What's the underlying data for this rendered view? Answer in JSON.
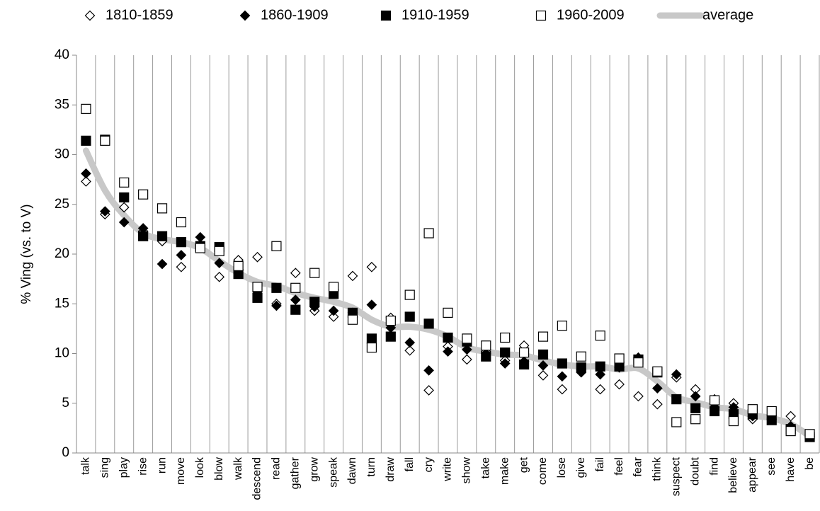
{
  "chart_data": {
    "type": "scatter",
    "ylabel": "% Ving (vs. to V)",
    "categories": [
      "talk",
      "sing",
      "play",
      "rise",
      "run",
      "move",
      "look",
      "blow",
      "walk",
      "descend",
      "read",
      "gather",
      "grow",
      "speak",
      "dawn",
      "turn",
      "draw",
      "fall",
      "cry",
      "write",
      "show",
      "take",
      "make",
      "get",
      "come",
      "lose",
      "give",
      "fail",
      "feel",
      "fear",
      "think",
      "suspect",
      "doubt",
      "find",
      "believe",
      "appear",
      "see",
      "have",
      "be"
    ],
    "ylim": [
      0,
      40
    ],
    "yticks": [
      0,
      5,
      10,
      15,
      20,
      25,
      30,
      35,
      40
    ],
    "legend": "top",
    "series": [
      {
        "name": "1810-1859",
        "color": "#000000",
        "marker": "diamond",
        "filled": false,
        "values": [
          27.3,
          24.0,
          24.7,
          22.3,
          21.3,
          18.7,
          20.9,
          17.7,
          19.4,
          19.7,
          15.0,
          18.1,
          14.3,
          13.7,
          17.8,
          18.7,
          13.6,
          10.3,
          6.3,
          10.7,
          9.4,
          10.2,
          9.3,
          10.8,
          7.8,
          6.4,
          8.4,
          6.4,
          6.9,
          5.7,
          4.9,
          7.6,
          6.4,
          5.4,
          5.0,
          3.4,
          3.5,
          3.7,
          1.7
        ]
      },
      {
        "name": "1860-1909",
        "color": "#000000",
        "marker": "diamond",
        "filled": true,
        "values": [
          28.1,
          24.3,
          23.2,
          22.6,
          19.0,
          19.9,
          21.7,
          19.1,
          18.1,
          16.2,
          14.8,
          15.4,
          14.7,
          14.3,
          14.1,
          14.9,
          12.6,
          11.1,
          8.3,
          10.2,
          10.4,
          10.0,
          9.0,
          9.2,
          8.8,
          7.7,
          8.1,
          7.9,
          8.6,
          9.6,
          6.5,
          7.9,
          5.7,
          4.6,
          4.6,
          3.7,
          3.4,
          2.7,
          1.8
        ]
      },
      {
        "name": "1910-1959",
        "color": "#000000",
        "marker": "square",
        "filled": true,
        "values": [
          31.4,
          31.5,
          25.7,
          21.8,
          21.8,
          21.2,
          20.8,
          20.7,
          18.0,
          15.6,
          16.6,
          14.4,
          15.2,
          16.0,
          14.1,
          11.5,
          11.7,
          13.7,
          13.0,
          11.6,
          11.2,
          9.7,
          10.1,
          8.9,
          9.9,
          9.0,
          8.6,
          8.7,
          8.7,
          9.4,
          8.1,
          5.4,
          4.5,
          4.2,
          3.9,
          3.9,
          3.3,
          2.4,
          1.6
        ]
      },
      {
        "name": "1960-2009",
        "color": "#000000",
        "marker": "square",
        "filled": false,
        "values": [
          34.6,
          31.4,
          27.2,
          26.0,
          24.6,
          23.2,
          20.6,
          20.3,
          18.8,
          16.7,
          20.8,
          16.6,
          18.1,
          16.7,
          13.4,
          10.6,
          13.3,
          15.9,
          22.1,
          14.1,
          11.5,
          10.8,
          11.6,
          10.1,
          11.7,
          12.8,
          9.7,
          11.8,
          9.5,
          9.1,
          8.2,
          3.1,
          3.4,
          5.3,
          3.2,
          4.4,
          4.2,
          2.2,
          1.9
        ]
      },
      {
        "name": "average",
        "color": "#c8c8c8",
        "marker": "line",
        "filled": true,
        "values": [
          30.4,
          26.4,
          23.9,
          22.1,
          21.5,
          21.2,
          20.6,
          19.3,
          18.1,
          17.2,
          16.8,
          16.1,
          15.6,
          15.2,
          14.6,
          13.4,
          12.7,
          12.7,
          12.4,
          11.7,
          10.6,
          10.2,
          9.9,
          9.8,
          9.3,
          8.9,
          8.7,
          8.7,
          8.4,
          8.5,
          7.2,
          5.6,
          5.1,
          4.6,
          4.4,
          3.8,
          3.5,
          2.9,
          1.7
        ]
      }
    ]
  }
}
